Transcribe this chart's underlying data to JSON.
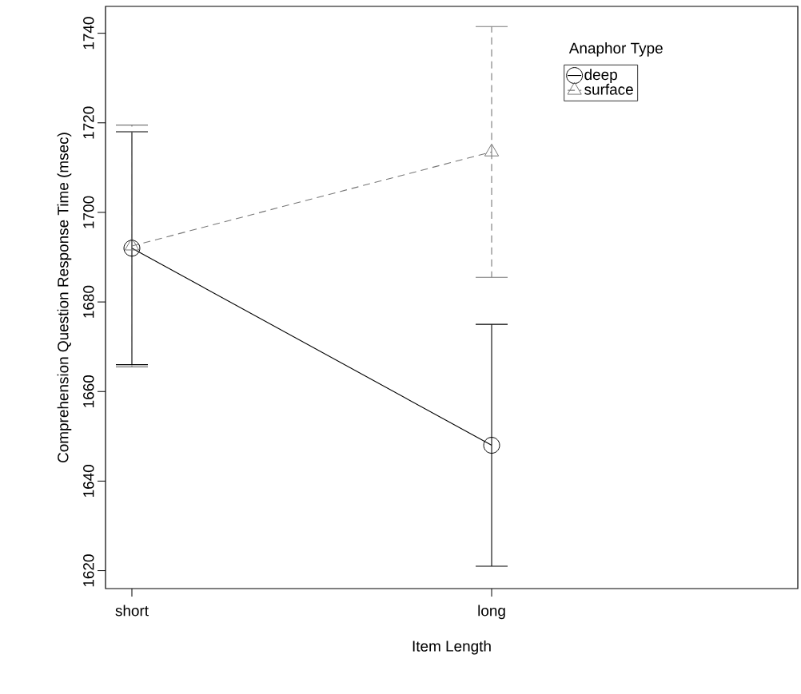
{
  "chart_data": {
    "type": "line",
    "xlabel": "Item Length",
    "ylabel": "Comprehension Question Response Time (msec)",
    "legend_title": "Anaphor Type",
    "categories": [
      "short",
      "long"
    ],
    "series": [
      {
        "name": "deep",
        "color": "#000000",
        "values": [
          1692,
          1648
        ],
        "errors": [
          26,
          27
        ],
        "marker": "circle",
        "line_style": "solid"
      },
      {
        "name": "surface",
        "color": "#777777",
        "values": [
          1692.5,
          1713.5
        ],
        "errors": [
          27,
          28
        ],
        "marker": "triangle",
        "line_style": "dashed"
      }
    ],
    "ylim": [
      1616,
      1746
    ],
    "yticks": [
      1620,
      1640,
      1660,
      1680,
      1700,
      1720,
      1740
    ],
    "legend": "top right"
  }
}
